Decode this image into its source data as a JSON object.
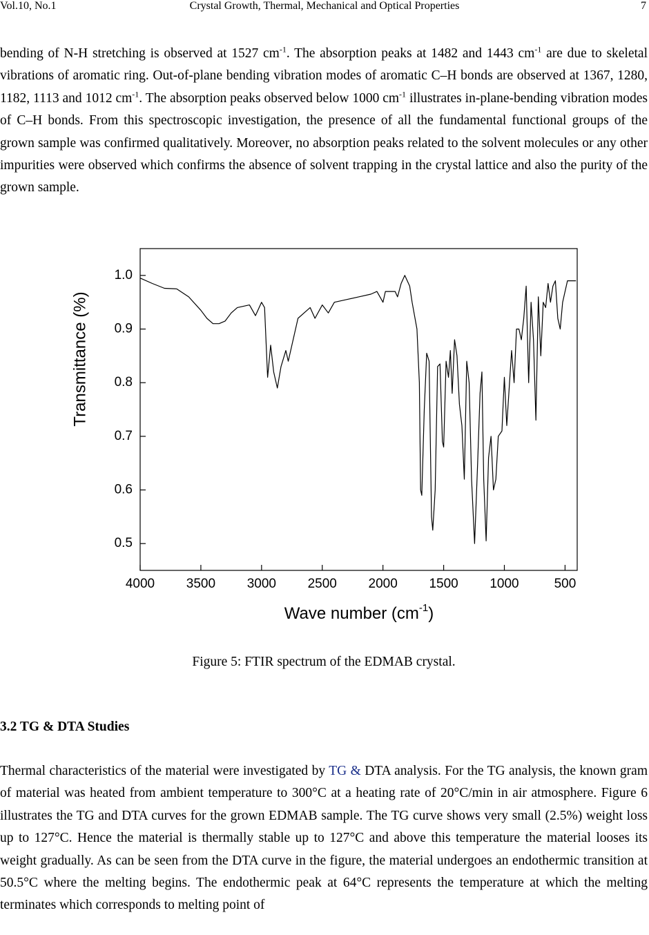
{
  "header": {
    "left": "Vol.10, No.1",
    "center": "Crystal Growth, Thermal, Mechanical and Optical Properties",
    "right": "7"
  },
  "paragraph1": [
    {
      "text": "bending of N-H stretching is observed at 1527 cm"
    },
    {
      "sup": "-1"
    },
    {
      "text": ". The absorption peaks at 1482 and 1443 cm"
    },
    {
      "sup": "-1"
    },
    {
      "text": " are due to skeletal vibrations of aromatic ring. Out-of-plane bending vibration modes of aromatic C–H bonds are observed at 1367, 1280, 1182, 1113 and 1012 cm"
    },
    {
      "sup": "-1"
    },
    {
      "text": ". The absorption peaks observed below 1000 cm"
    },
    {
      "sup": "-1"
    },
    {
      "text": " illustrates in-plane-bending vibration modes of C–H bonds. From this spectroscopic investigation, the presence of all the fundamental functional groups of the grown sample was confirmed qualitatively. Moreover, no absorption peaks related to the solvent molecules or any other impurities were observed which confirms the absence of solvent trapping in the crystal lattice and also the purity of the grown sample."
    }
  ],
  "chart_data": {
    "type": "line",
    "xlabel": {
      "main": "Wave number (cm",
      "sup": "-1",
      "end": ")"
    },
    "ylabel": "Transmittance (%)",
    "xlim": [
      4000,
      400
    ],
    "ylim": [
      0.45,
      1.05
    ],
    "xticks": [
      4000,
      3500,
      3000,
      2500,
      2000,
      1500,
      1000,
      500
    ],
    "yticks": [
      {
        "value": 1.0,
        "label": "1.0"
      },
      0.9,
      0.8,
      0.7,
      0.6,
      0.5
    ],
    "series": [
      {
        "color": "#000000",
        "x": [
          4000,
          3900,
          3800,
          3700,
          3600,
          3500,
          3450,
          3400,
          3350,
          3300,
          3250,
          3200,
          3100,
          3050,
          3000,
          2975,
          2950,
          2925,
          2900,
          2870,
          2840,
          2800,
          2780,
          2750,
          2700,
          2650,
          2600,
          2560,
          2500,
          2450,
          2400,
          2300,
          2200,
          2100,
          2050,
          2000,
          1980,
          1900,
          1880,
          1850,
          1820,
          1780,
          1760,
          1720,
          1700,
          1690,
          1680,
          1660,
          1640,
          1620,
          1600,
          1590,
          1570,
          1550,
          1530,
          1510,
          1500,
          1480,
          1460,
          1445,
          1430,
          1410,
          1390,
          1370,
          1350,
          1330,
          1310,
          1290,
          1270,
          1245,
          1220,
          1200,
          1185,
          1170,
          1150,
          1130,
          1110,
          1090,
          1070,
          1050,
          1020,
          1000,
          980,
          960,
          940,
          920,
          900,
          880,
          860,
          840,
          820,
          800,
          780,
          760,
          740,
          720,
          700,
          680,
          660,
          640,
          620,
          600,
          580,
          560,
          540,
          520,
          500,
          480,
          450,
          410
        ],
        "values": [
          0.995,
          0.985,
          0.976,
          0.975,
          0.96,
          0.935,
          0.92,
          0.91,
          0.91,
          0.915,
          0.93,
          0.94,
          0.945,
          0.925,
          0.95,
          0.94,
          0.81,
          0.87,
          0.82,
          0.79,
          0.83,
          0.86,
          0.84,
          0.87,
          0.92,
          0.93,
          0.94,
          0.92,
          0.945,
          0.93,
          0.95,
          0.955,
          0.96,
          0.965,
          0.97,
          0.95,
          0.97,
          0.97,
          0.96,
          0.985,
          1.0,
          0.98,
          0.95,
          0.9,
          0.8,
          0.6,
          0.59,
          0.75,
          0.855,
          0.84,
          0.55,
          0.525,
          0.6,
          0.83,
          0.835,
          0.69,
          0.68,
          0.84,
          0.81,
          0.86,
          0.78,
          0.88,
          0.85,
          0.76,
          0.72,
          0.62,
          0.84,
          0.8,
          0.62,
          0.5,
          0.65,
          0.78,
          0.82,
          0.62,
          0.505,
          0.66,
          0.7,
          0.6,
          0.62,
          0.7,
          0.71,
          0.81,
          0.72,
          0.79,
          0.86,
          0.8,
          0.9,
          0.9,
          0.88,
          0.92,
          0.98,
          0.8,
          0.95,
          0.88,
          0.73,
          0.96,
          0.85,
          0.95,
          0.94,
          0.985,
          0.95,
          0.98,
          0.99,
          0.92,
          0.9,
          0.95,
          0.97,
          0.99,
          0.99,
          0.99
        ]
      }
    ]
  },
  "caption": "Figure 5: FTIR spectrum of the EDMAB crystal.",
  "heading": "3.2 TG & DTA Studies",
  "paragraph2": [
    {
      "text": "Thermal characteristics of the material were investigated by "
    },
    {
      "link": "TG &"
    },
    {
      "text": " DTA analysis. For the TG analysis, the known gram of material was heated from ambient temperature to 300°C at a heating rate of 20°C/min in air atmosphere. Figure 6 illustrates the TG and DTA curves for the grown EDMAB sample. The TG curve shows very small (2.5%) weight loss up to 127°C. Hence the material is thermally stable up to 127°C and above this temperature the material looses its weight gradually. As can be seen from the DTA curve in the figure, the material undergoes an endothermic transition at 50.5°C where the melting begins. The endothermic peak at 64°C represents the temperature at which the melting terminates which corresponds to melting point of"
    }
  ]
}
